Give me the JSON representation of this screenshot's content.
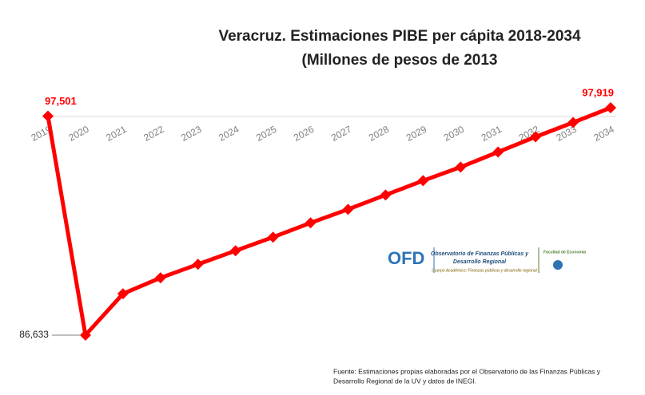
{
  "chart_data": {
    "type": "line",
    "title": [
      "Veracruz. Estimaciones PIBE  per cápita  2018-2034",
      "(Millones de pesos de 2013"
    ],
    "categories": [
      "2019",
      "2020",
      "2021",
      "2022",
      "2023",
      "2024",
      "2025",
      "2026",
      "2027",
      "2028",
      "2029",
      "2030",
      "2031",
      "2032",
      "2033",
      "2034"
    ],
    "values": [
      97501,
      86633,
      88688,
      89478,
      90150,
      90822,
      91494,
      92205,
      92877,
      93589,
      94300,
      94972,
      95723,
      96473,
      97185,
      97919
    ],
    "value_labels": [
      "97,501",
      "86,633",
      null,
      null,
      null,
      null,
      null,
      null,
      null,
      null,
      null,
      null,
      null,
      null,
      null,
      "97,919"
    ],
    "color": "#ff0000"
  },
  "logo": {
    "mark": "OFD",
    "name": [
      "Observatorio de Finanzas Públicas y",
      "Desarrollo Regional"
    ],
    "group": "Cuerpo Académico: Finanzas públicas y desarrollo regional",
    "faculty": "Facultad de Economía"
  },
  "source": [
    "Fuente: Estimaciones propias elaboradas por el Observatorio de las Finanzas Públicas  y",
    "Desarrollo Regional de la UV y datos de INEGI."
  ]
}
